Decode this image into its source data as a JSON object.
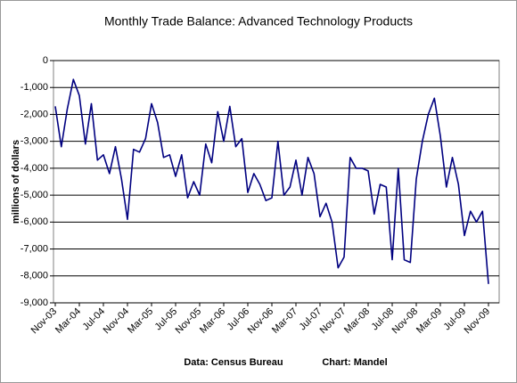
{
  "chart_data": {
    "type": "line",
    "title": "Monthly Trade Balance: Advanced Technology Products",
    "y_label": "millions of dollars",
    "source": "Data: Census Bureau",
    "credit": "Chart: Mandel",
    "categories": [
      "Nov-03",
      null,
      null,
      null,
      "Mar-04",
      null,
      null,
      null,
      "Jul-04",
      null,
      null,
      null,
      "Nov-04",
      null,
      null,
      null,
      "Mar-05",
      null,
      null,
      null,
      "Jul-05",
      null,
      null,
      null,
      "Nov-05",
      null,
      null,
      null,
      "Mar-06",
      null,
      null,
      null,
      "Jul-06",
      null,
      null,
      null,
      "Nov-06",
      null,
      null,
      null,
      "Mar-07",
      null,
      null,
      null,
      "Jul-07",
      null,
      null,
      null,
      "Nov-07",
      null,
      null,
      null,
      "Mar-08",
      null,
      null,
      null,
      "Jul-08",
      null,
      null,
      null,
      "Nov-08",
      null,
      null,
      null,
      "Mar-09",
      null,
      null,
      null,
      "Jul-09",
      null,
      null,
      null,
      "Nov-09"
    ],
    "series": [
      {
        "color": "#000080",
        "values": [
          -1700,
          -3200,
          -1800,
          -700,
          -1300,
          -3100,
          -1600,
          -3700,
          -3500,
          -4200,
          -3200,
          -4400,
          -5900,
          -3300,
          -3400,
          -2900,
          -1600,
          -2300,
          -3600,
          -3500,
          -4300,
          -3500,
          -5100,
          -4500,
          -5000,
          -3100,
          -3800,
          -1900,
          -3000,
          -1700,
          -3200,
          -2900,
          -4900,
          -4200,
          -4600,
          -5200,
          -5100,
          -3000,
          -5000,
          -4700,
          -3700,
          -5000,
          -3600,
          -4200,
          -5800,
          -5300,
          -6000,
          -7700,
          -7300,
          -3600,
          -4000,
          -4000,
          -4100,
          -5700,
          -4600,
          -4700,
          -7400,
          -4000,
          -7400,
          -7500,
          -4400,
          -3000,
          -2000,
          -1400,
          -2800,
          -4700,
          -3600,
          -4600,
          -6500,
          -5600,
          -6000,
          -5600,
          -8300
        ]
      }
    ],
    "ylim": [
      -9000,
      0
    ],
    "yticks": [
      0,
      {
        "value": -1000,
        "label": "-1,000"
      },
      {
        "value": -2000,
        "label": "-2,000"
      },
      {
        "value": -3000,
        "label": "-3,000"
      },
      {
        "value": -4000,
        "label": "-4,000"
      },
      {
        "value": -5000,
        "label": "-5,000"
      },
      {
        "value": -6000,
        "label": "-6,000"
      },
      {
        "value": -7000,
        "label": "-7,000"
      },
      {
        "value": -8000,
        "label": "-8,000"
      },
      {
        "value": -9000,
        "label": "-9,000"
      }
    ],
    "grid": true
  }
}
